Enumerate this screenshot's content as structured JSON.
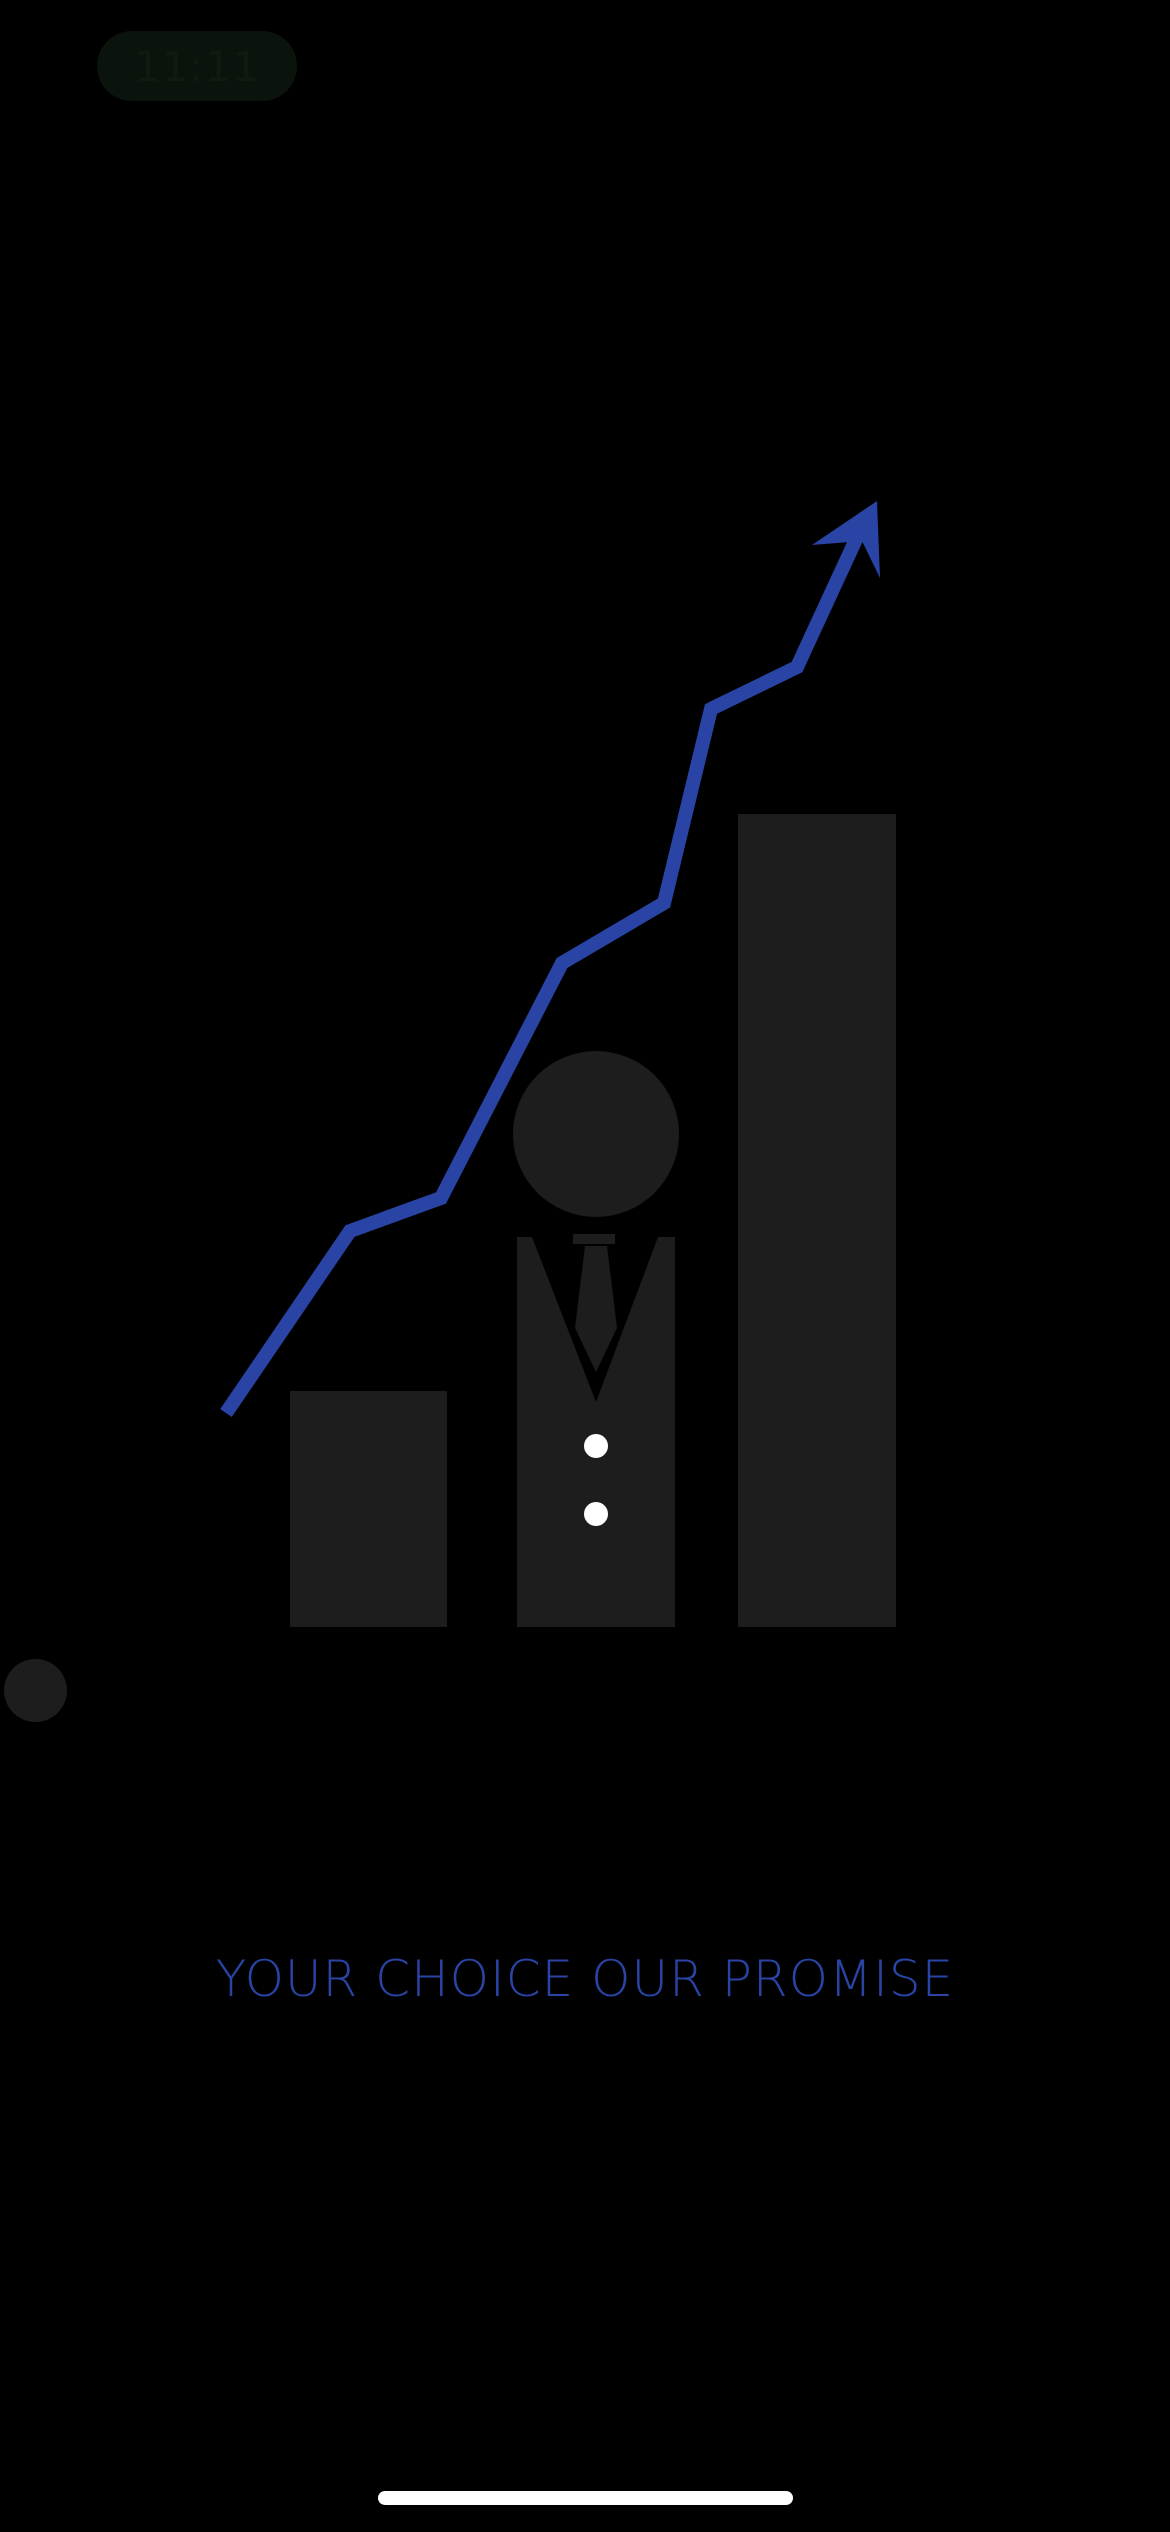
{
  "status_bar": {
    "time": "11:11"
  },
  "splash": {
    "tagline": "YOUR CHOICE OUR PROMISE",
    "logo_icon": "growth-chart-businessman-logo"
  },
  "colors": {
    "background": "#000000",
    "accent_blue": "#2a44a6",
    "bar_gray": "#1c1d1c",
    "button_white": "#ffffff"
  }
}
